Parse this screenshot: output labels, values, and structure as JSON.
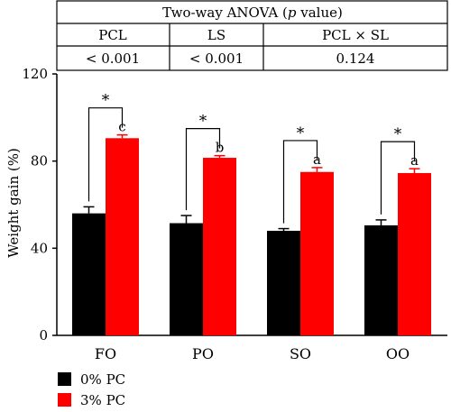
{
  "anova_table": {
    "title": "Two-way ANOVA",
    "title_paren_open": "(",
    "title_p": "p",
    "title_paren_close": " value)",
    "headers": [
      "PCL",
      "LS",
      "PCL × SL"
    ],
    "values": [
      "< 0.001",
      "< 0.001",
      "0.124"
    ]
  },
  "chart_data": {
    "type": "bar",
    "ylabel": "Weight gain (%)",
    "ylim": [
      0,
      120
    ],
    "yticks": [
      0,
      40,
      80,
      120
    ],
    "categories": [
      "FO",
      "PO",
      "SO",
      "OO"
    ],
    "series": [
      {
        "name": "0% PC",
        "color": "#000000",
        "values": [
          56,
          51.5,
          48,
          50.5
        ],
        "errors": [
          3,
          3.5,
          1,
          2.5
        ]
      },
      {
        "name": "3% PC",
        "color": "#ff0000",
        "values": [
          90.5,
          81.5,
          75,
          74.5
        ],
        "errors": [
          1.5,
          1,
          2,
          2
        ]
      }
    ],
    "letters": [
      "c",
      "b",
      "a",
      "a"
    ],
    "significance": "*",
    "legend_position": "bottom-left"
  }
}
